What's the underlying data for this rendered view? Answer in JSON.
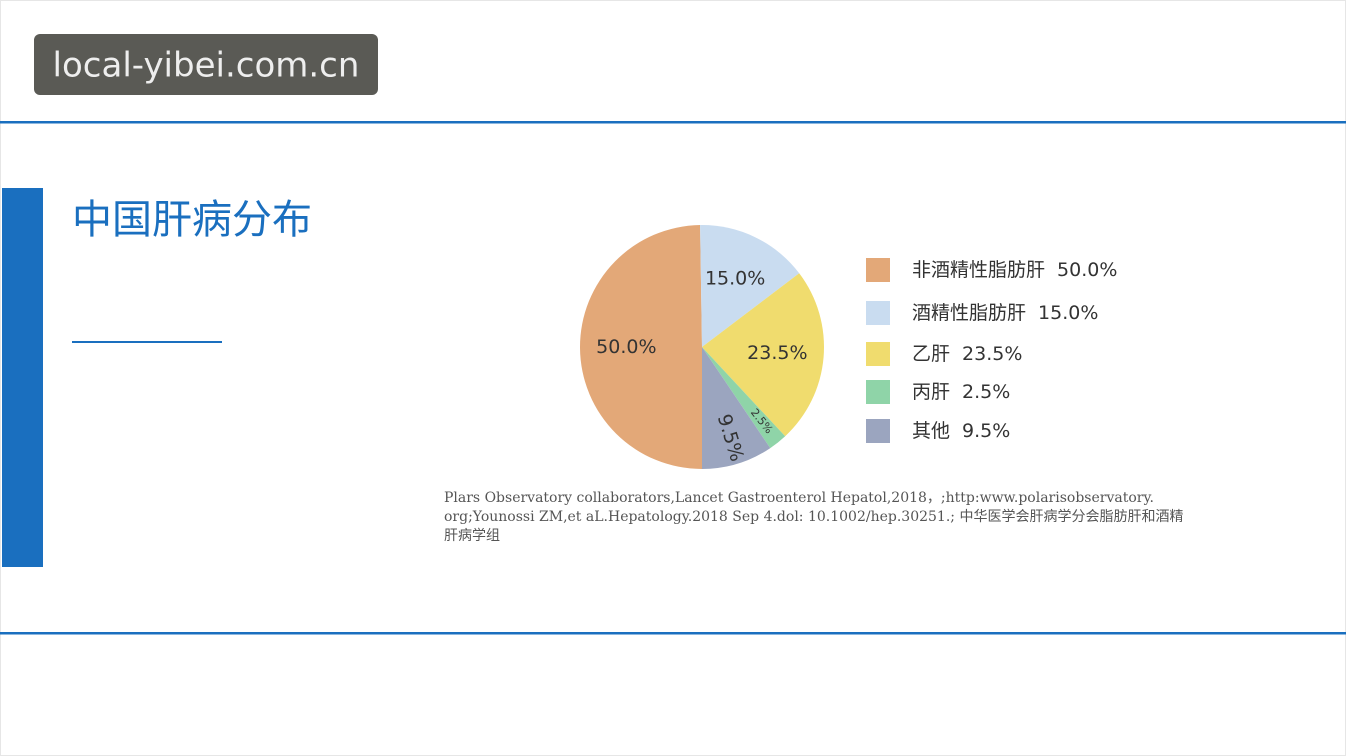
{
  "watermark": "local-yibei.com.cn",
  "chart_data": {
    "type": "pie",
    "title": "中国肝病分布",
    "series": [
      {
        "name": "非酒精性脂肪肝",
        "color": "#e3a878",
        "values": [
          50.0
        ],
        "value_labels": [
          "50.0%"
        ]
      },
      {
        "name": "酒精性脂肪肝",
        "color": "#c9dcf0",
        "values": [
          15.0
        ],
        "value_labels": [
          "15.0%"
        ]
      },
      {
        "name": "乙肝",
        "color": "#f0dc6e",
        "values": [
          23.5
        ],
        "value_labels": [
          "23.5%"
        ]
      },
      {
        "name": "丙肝",
        "color": "#8fd4a8",
        "values": [
          2.5
        ],
        "value_labels": [
          "2.5%"
        ]
      },
      {
        "name": "其他",
        "color": "#9ba5bf",
        "values": [
          9.5
        ],
        "value_labels": [
          "9.5%"
        ]
      }
    ]
  },
  "citation": [
    "Plars Observatory collaborators,Lancet Gastroenterol Hepatol,2018，;http:www.polarisobservatory.",
    "org;Younossi ZM,et aL.Hepatology.2018 Sep 4.dol: 10.1002/hep.30251.; 中华医学会肝病学分会脂肪肝和酒精",
    "肝病学组"
  ]
}
